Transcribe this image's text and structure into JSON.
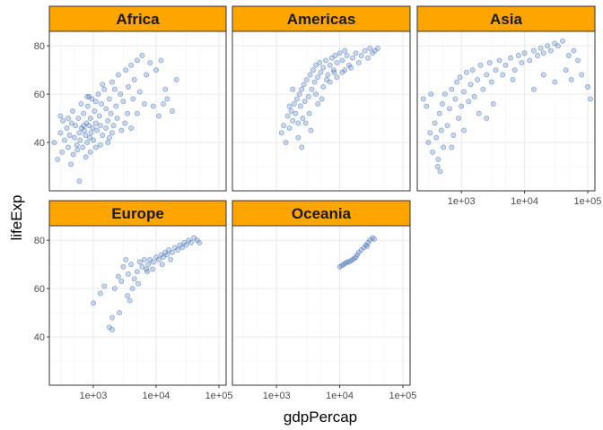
{
  "figure": {
    "xlabel": "gdpPercap",
    "ylabel": "lifeExp"
  },
  "style": {
    "strip_fill": "#FFA500",
    "strip_text_color": "#1A1A1A",
    "point_fill": "#4F81C7",
    "point_stroke": "#3A64A8",
    "point_opacity": 0.3,
    "panel_border": "#333333",
    "grid_major": "#EBEBEB",
    "grid_minor": "#F4F4F4",
    "background": "#FFFFFF"
  },
  "chart_data": {
    "type": "scatter",
    "facet_by": "continent",
    "x_scale": "log10",
    "xlim": [
      200,
      130000
    ],
    "ylim": [
      20,
      86
    ],
    "x_ticks": [
      1000,
      10000,
      100000
    ],
    "x_tick_labels": [
      "1e+03",
      "1e+04",
      "1e+05"
    ],
    "y_ticks": [
      40,
      60,
      80
    ],
    "y_tick_labels": [
      "40",
      "60",
      "80"
    ],
    "grid": true,
    "legend": "none",
    "facets": [
      {
        "name": "Africa",
        "points": [
          [
            300,
            44
          ],
          [
            320,
            36
          ],
          [
            350,
            41
          ],
          [
            380,
            46
          ],
          [
            400,
            38
          ],
          [
            420,
            43
          ],
          [
            450,
            48
          ],
          [
            480,
            35
          ],
          [
            500,
            42
          ],
          [
            520,
            47
          ],
          [
            550,
            39
          ],
          [
            580,
            50
          ],
          [
            600,
            44
          ],
          [
            620,
            41
          ],
          [
            650,
            46
          ],
          [
            680,
            38
          ],
          [
            700,
            52
          ],
          [
            720,
            45
          ],
          [
            750,
            43
          ],
          [
            780,
            48
          ],
          [
            800,
            40
          ],
          [
            820,
            55
          ],
          [
            850,
            47
          ],
          [
            880,
            42
          ],
          [
            900,
            50
          ],
          [
            920,
            44
          ],
          [
            950,
            58
          ],
          [
            980,
            46
          ],
          [
            1000,
            41
          ],
          [
            1050,
            53
          ],
          [
            1100,
            48
          ],
          [
            1150,
            45
          ],
          [
            1200,
            60
          ],
          [
            1250,
            51
          ],
          [
            1300,
            47
          ],
          [
            1350,
            56
          ],
          [
            1400,
            43
          ],
          [
            1500,
            62
          ],
          [
            1600,
            54
          ],
          [
            1700,
            49
          ],
          [
            1800,
            58
          ],
          [
            1900,
            52
          ],
          [
            2000,
            65
          ],
          [
            2100,
            47
          ],
          [
            2300,
            55
          ],
          [
            2500,
            68
          ],
          [
            2700,
            60
          ],
          [
            3000,
            57
          ],
          [
            3300,
            70
          ],
          [
            3600,
            63
          ],
          [
            4000,
            72
          ],
          [
            4500,
            66
          ],
          [
            5000,
            74
          ],
          [
            5500,
            61
          ],
          [
            6000,
            76
          ],
          [
            7000,
            68
          ],
          [
            8000,
            73
          ],
          [
            9000,
            55
          ],
          [
            10000,
            70
          ],
          [
            12000,
            74
          ],
          [
            14000,
            62
          ],
          [
            15000,
            58
          ],
          [
            18000,
            53
          ],
          [
            21000,
            66
          ],
          [
            240,
            40
          ],
          [
            270,
            33
          ],
          [
            330,
            49
          ],
          [
            440,
            31
          ],
          [
            470,
            53
          ],
          [
            560,
            37
          ],
          [
            640,
            56
          ],
          [
            760,
            34
          ],
          [
            860,
            59
          ],
          [
            1100,
            38
          ],
          [
            1400,
            64
          ],
          [
            1700,
            40
          ],
          [
            2200,
            62
          ],
          [
            2800,
            45
          ],
          [
            3500,
            52
          ],
          [
            4300,
            58
          ],
          [
            600,
            24
          ],
          [
            2000,
            44
          ],
          [
            900,
            36
          ],
          [
            1300,
            39
          ],
          [
            800,
            59
          ],
          [
            1100,
            57
          ],
          [
            700,
            47
          ],
          [
            1600,
            46
          ],
          [
            2400,
            50
          ],
          [
            3200,
            48
          ],
          [
            4000,
            46
          ],
          [
            5000,
            52
          ],
          [
            6500,
            56
          ],
          [
            11000,
            51
          ],
          [
            13000,
            56
          ],
          [
            400,
            50
          ],
          [
            300,
            51
          ],
          [
            1800,
            42
          ]
        ]
      },
      {
        "name": "Americas",
        "points": [
          [
            1200,
            44
          ],
          [
            1300,
            47
          ],
          [
            1400,
            40
          ],
          [
            1500,
            51
          ],
          [
            1600,
            46
          ],
          [
            1700,
            53
          ],
          [
            1800,
            49
          ],
          [
            1900,
            56
          ],
          [
            2000,
            52
          ],
          [
            2100,
            58
          ],
          [
            2200,
            48
          ],
          [
            2300,
            60
          ],
          [
            2400,
            55
          ],
          [
            2500,
            62
          ],
          [
            2600,
            50
          ],
          [
            2700,
            64
          ],
          [
            2800,
            57
          ],
          [
            3000,
            66
          ],
          [
            3200,
            59
          ],
          [
            3400,
            68
          ],
          [
            3600,
            62
          ],
          [
            3800,
            70
          ],
          [
            4000,
            65
          ],
          [
            4200,
            72
          ],
          [
            4500,
            67
          ],
          [
            4800,
            73
          ],
          [
            5000,
            69
          ],
          [
            5500,
            71
          ],
          [
            6000,
            74
          ],
          [
            6500,
            68
          ],
          [
            7000,
            72
          ],
          [
            7500,
            75
          ],
          [
            8000,
            70
          ],
          [
            8500,
            76
          ],
          [
            9000,
            73
          ],
          [
            10000,
            77
          ],
          [
            11000,
            74
          ],
          [
            12000,
            78
          ],
          [
            14000,
            72
          ],
          [
            16000,
            75
          ],
          [
            18000,
            77
          ],
          [
            20000,
            73
          ],
          [
            22000,
            76
          ],
          [
            25000,
            78
          ],
          [
            28000,
            75
          ],
          [
            30000,
            79
          ],
          [
            33000,
            77
          ],
          [
            36000,
            78
          ],
          [
            40000,
            79
          ],
          [
            2500,
            38
          ],
          [
            2200,
            42
          ],
          [
            3500,
            45
          ],
          [
            4500,
            56
          ],
          [
            5500,
            63
          ],
          [
            7000,
            65
          ],
          [
            9000,
            67
          ],
          [
            12000,
            70
          ],
          [
            3300,
            52
          ],
          [
            2900,
            48
          ],
          [
            4200,
            60
          ],
          [
            6200,
            66
          ],
          [
            8200,
            69
          ],
          [
            15000,
            71
          ],
          [
            1600,
            55
          ],
          [
            1800,
            62
          ],
          [
            5200,
            58
          ],
          [
            11000,
            69
          ],
          [
            13000,
            76
          ]
        ]
      },
      {
        "name": "Asia",
        "points": [
          [
            300,
            40
          ],
          [
            320,
            44
          ],
          [
            350,
            36
          ],
          [
            380,
            48
          ],
          [
            400,
            42
          ],
          [
            420,
            30
          ],
          [
            450,
            52
          ],
          [
            480,
            45
          ],
          [
            500,
            56
          ],
          [
            520,
            38
          ],
          [
            550,
            60
          ],
          [
            600,
            47
          ],
          [
            650,
            54
          ],
          [
            700,
            62
          ],
          [
            750,
            43
          ],
          [
            800,
            58
          ],
          [
            850,
            65
          ],
          [
            900,
            50
          ],
          [
            950,
            67
          ],
          [
            1000,
            55
          ],
          [
            1100,
            61
          ],
          [
            1200,
            69
          ],
          [
            1300,
            57
          ],
          [
            1400,
            64
          ],
          [
            1500,
            70
          ],
          [
            1600,
            59
          ],
          [
            1800,
            66
          ],
          [
            2000,
            72
          ],
          [
            2200,
            62
          ],
          [
            2500,
            68
          ],
          [
            2800,
            73
          ],
          [
            3000,
            65
          ],
          [
            3500,
            70
          ],
          [
            4000,
            74
          ],
          [
            4500,
            68
          ],
          [
            5000,
            72
          ],
          [
            6000,
            75
          ],
          [
            7000,
            70
          ],
          [
            8000,
            76
          ],
          [
            9000,
            73
          ],
          [
            10000,
            77
          ],
          [
            12000,
            74
          ],
          [
            14000,
            78
          ],
          [
            16000,
            76
          ],
          [
            18000,
            79
          ],
          [
            20000,
            77
          ],
          [
            23000,
            80
          ],
          [
            26000,
            78
          ],
          [
            30000,
            81
          ],
          [
            34000,
            80
          ],
          [
            40000,
            82
          ],
          [
            50000,
            76
          ],
          [
            60000,
            78
          ],
          [
            70000,
            74
          ],
          [
            80000,
            68
          ],
          [
            100000,
            63
          ],
          [
            110000,
            58
          ],
          [
            45000,
            70
          ],
          [
            55000,
            66
          ],
          [
            250,
            58
          ],
          [
            280,
            55
          ],
          [
            330,
            60
          ],
          [
            430,
            33
          ],
          [
            460,
            28
          ],
          [
            700,
            38
          ],
          [
            1100,
            45
          ],
          [
            1900,
            52
          ],
          [
            2500,
            50
          ],
          [
            3200,
            56
          ],
          [
            14000,
            62
          ],
          [
            20000,
            68
          ],
          [
            6500,
            66
          ],
          [
            30000,
            65
          ]
        ]
      },
      {
        "name": "Europe",
        "points": [
          [
            1000,
            54
          ],
          [
            1300,
            58
          ],
          [
            1500,
            61
          ],
          [
            1800,
            44
          ],
          [
            2000,
            48
          ],
          [
            2200,
            60
          ],
          [
            2500,
            65
          ],
          [
            2800,
            63
          ],
          [
            3000,
            69
          ],
          [
            3300,
            72
          ],
          [
            3600,
            66
          ],
          [
            4000,
            70
          ],
          [
            4500,
            64
          ],
          [
            5000,
            67
          ],
          [
            5500,
            71
          ],
          [
            6000,
            69
          ],
          [
            6500,
            72
          ],
          [
            7000,
            68
          ],
          [
            7500,
            70
          ],
          [
            8000,
            72
          ],
          [
            9000,
            71
          ],
          [
            10000,
            73
          ],
          [
            11000,
            72
          ],
          [
            12000,
            74
          ],
          [
            13000,
            73
          ],
          [
            14000,
            75
          ],
          [
            15000,
            74
          ],
          [
            16000,
            76
          ],
          [
            18000,
            75
          ],
          [
            20000,
            77
          ],
          [
            22000,
            76
          ],
          [
            24000,
            78
          ],
          [
            26000,
            77
          ],
          [
            28000,
            79
          ],
          [
            30000,
            78
          ],
          [
            33000,
            80
          ],
          [
            36000,
            79
          ],
          [
            40000,
            81
          ],
          [
            45000,
            80
          ],
          [
            49000,
            79
          ],
          [
            3500,
            57
          ],
          [
            4200,
            60
          ],
          [
            5200,
            62
          ],
          [
            7200,
            67
          ],
          [
            8800,
            68
          ],
          [
            12500,
            70
          ],
          [
            17000,
            72
          ],
          [
            2000,
            43
          ],
          [
            2600,
            50
          ],
          [
            3800,
            55
          ]
        ]
      },
      {
        "name": "Oceania",
        "points": [
          [
            10000,
            69
          ],
          [
            10800,
            69.5
          ],
          [
            11500,
            70
          ],
          [
            12300,
            70.5
          ],
          [
            13000,
            71
          ],
          [
            14000,
            71
          ],
          [
            15000,
            71.5
          ],
          [
            16000,
            72
          ],
          [
            17000,
            72.5
          ],
          [
            18000,
            73
          ],
          [
            19000,
            74
          ],
          [
            20000,
            75
          ],
          [
            22000,
            76
          ],
          [
            24000,
            77
          ],
          [
            26000,
            78
          ],
          [
            28000,
            79
          ],
          [
            30000,
            80
          ],
          [
            33000,
            81
          ],
          [
            35000,
            80.5
          ],
          [
            27000,
            77.5
          ]
        ]
      }
    ]
  }
}
